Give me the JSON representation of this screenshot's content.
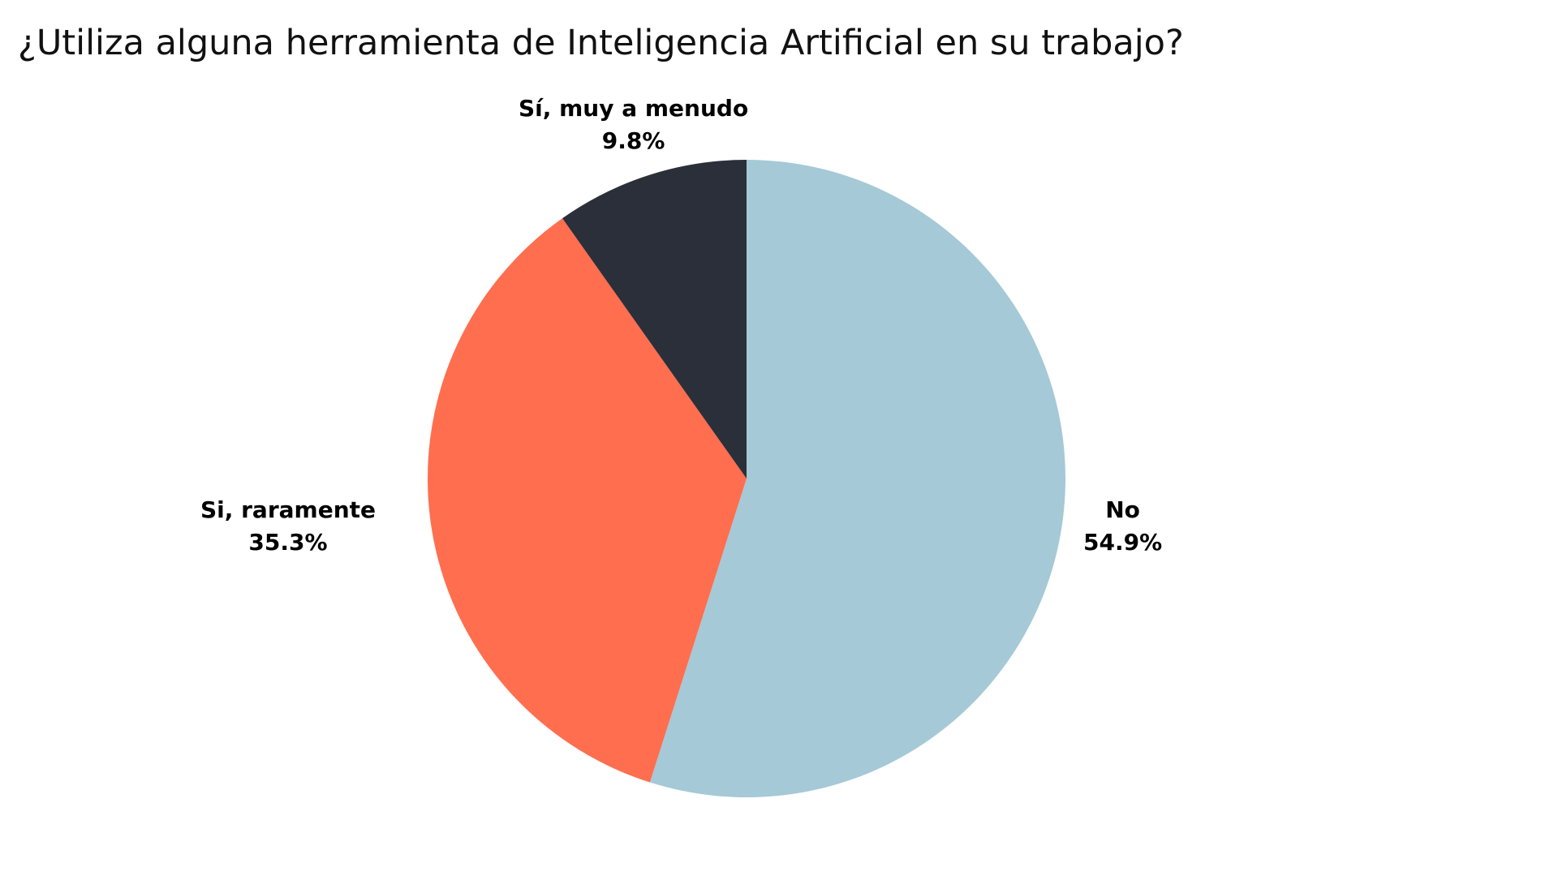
{
  "chart_data": {
    "type": "pie",
    "title": "¿Utiliza alguna herramienta de Inteligencia Artificial en su trabajo?",
    "slices": [
      {
        "label": "No",
        "value": 54.9,
        "value_label": "54.9%",
        "color": "#a5c9d6"
      },
      {
        "label": "Si, raramente",
        "value": 35.3,
        "value_label": "35.3%",
        "color": "#ff6e4f"
      },
      {
        "label": "Sí, muy a menudo",
        "value": 9.8,
        "value_label": "9.8%",
        "color": "#2b2f39"
      }
    ],
    "start": "12 o'clock",
    "direction": "clockwise",
    "legend": "none",
    "labels": "outside"
  }
}
